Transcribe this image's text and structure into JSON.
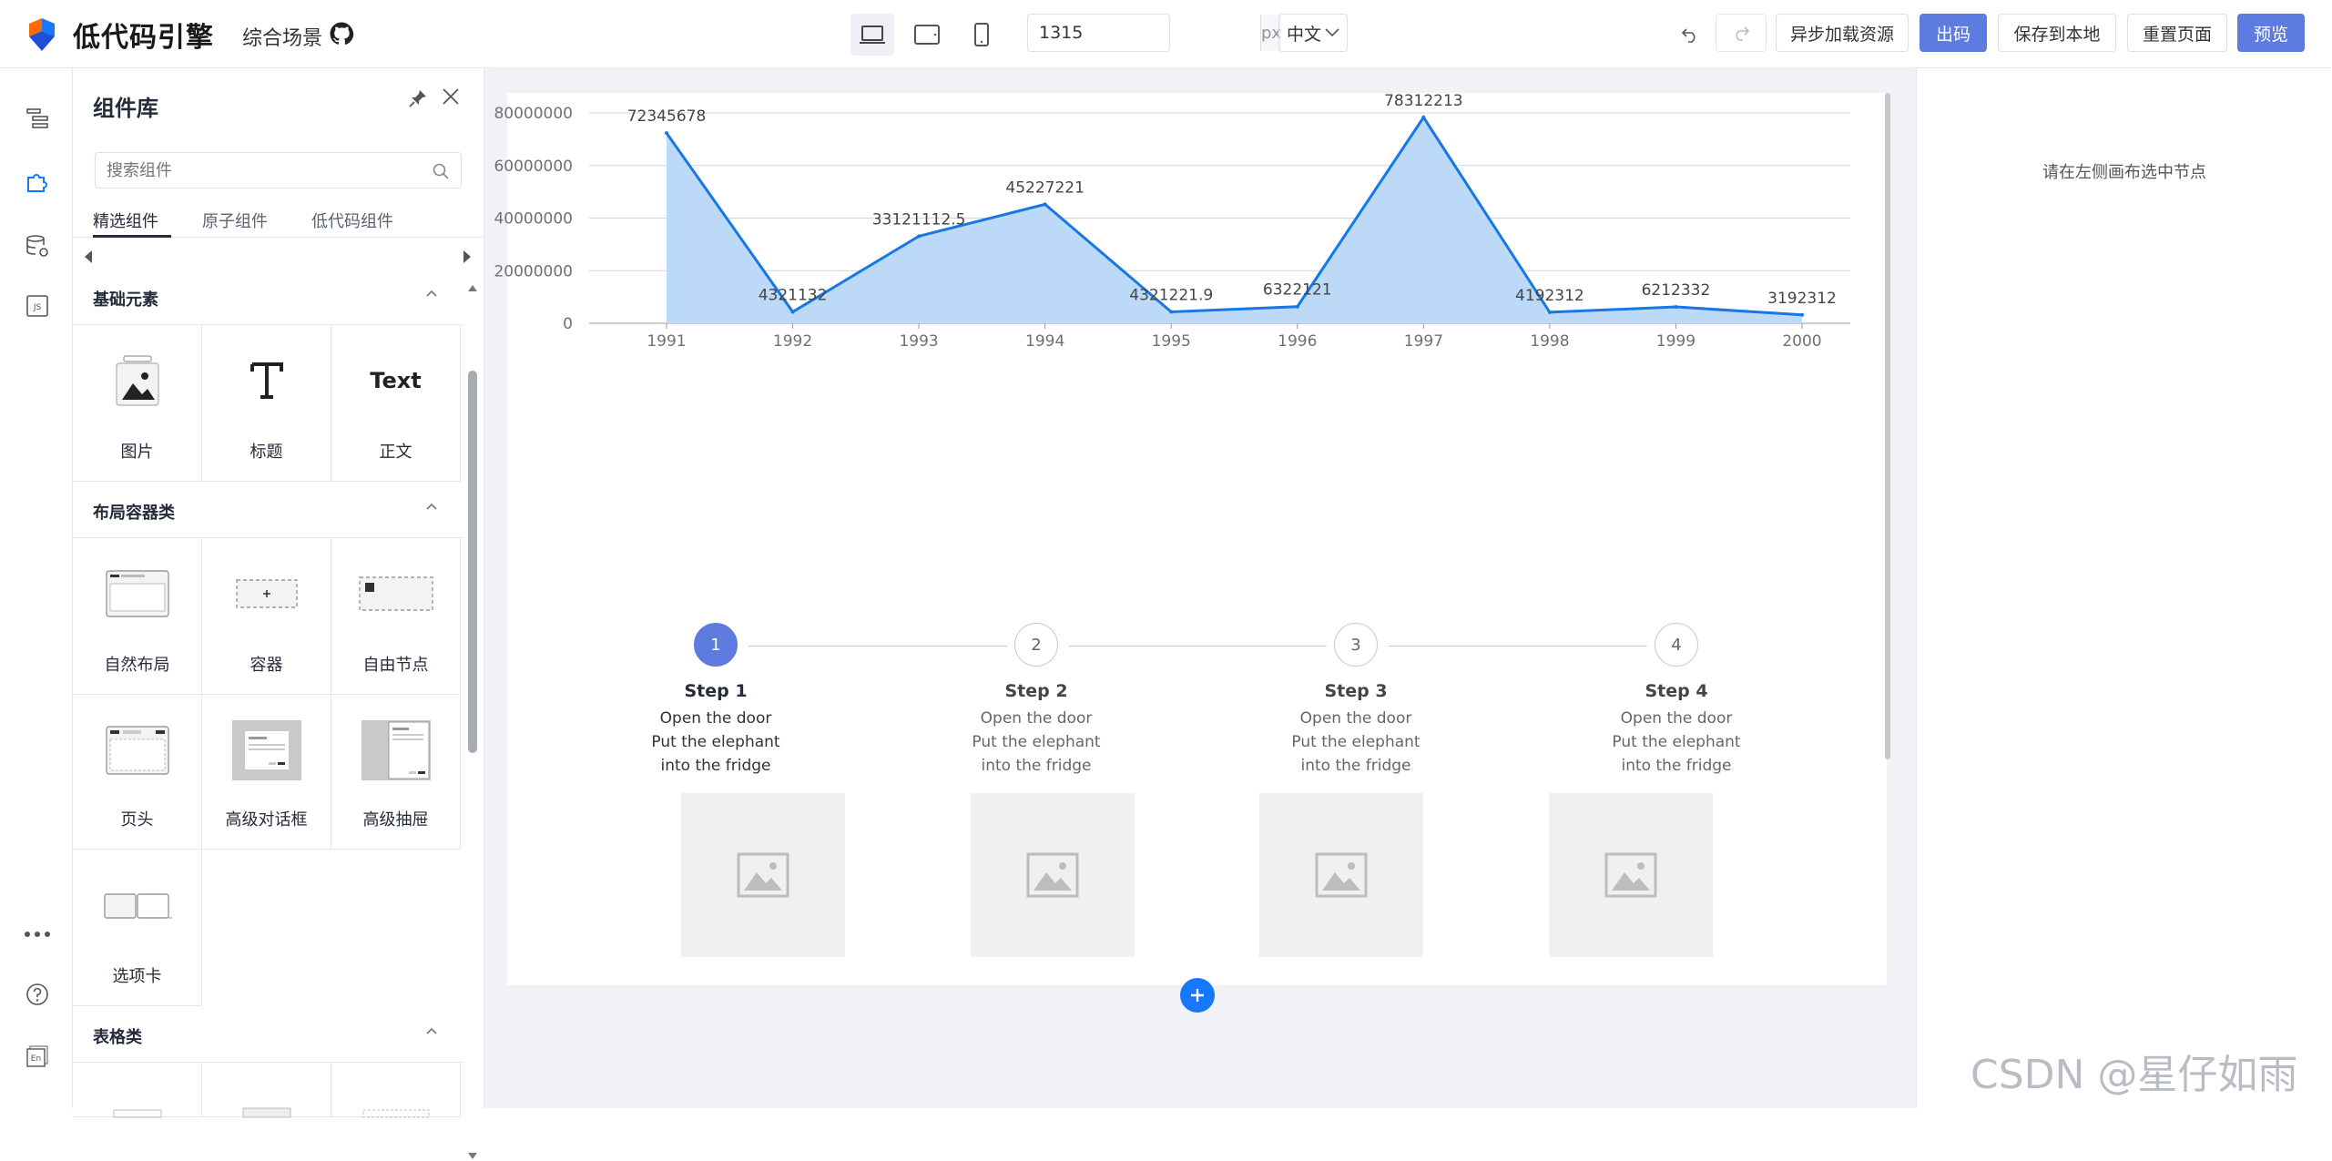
{
  "app": {
    "title": "低代码引擎",
    "scene": "综合场景"
  },
  "toolbar": {
    "width_value": "1315",
    "width_unit": "px",
    "language": "中文",
    "async_load": "异步加载资源",
    "export_code": "出码",
    "save_local": "保存到本地",
    "reset_page": "重置页面",
    "preview": "预览"
  },
  "panel": {
    "title": "组件库",
    "search_placeholder": "搜索组件",
    "tabs": [
      "精选组件",
      "原子组件",
      "低代码组件"
    ],
    "sections": [
      {
        "title": "基础元素",
        "items": [
          "图片",
          "标题",
          "正文"
        ]
      },
      {
        "title": "布局容器类",
        "items": [
          "自然布局",
          "容器",
          "自由节点",
          "页头",
          "高级对话框",
          "高级抽屉",
          "选项卡"
        ]
      },
      {
        "title": "表格类",
        "items": []
      }
    ],
    "text_icon_label": "Text"
  },
  "right_panel": {
    "hint": "请在左侧画布选中节点"
  },
  "chart_data": {
    "type": "area",
    "x": [
      "1991",
      "1992",
      "1993",
      "1994",
      "1995",
      "1996",
      "1997",
      "1998",
      "1999",
      "2000"
    ],
    "values": [
      72345678,
      4321132,
      33121112.5,
      45227221,
      4321221.9,
      6322121,
      78312213,
      4192312,
      6212332,
      3192312
    ],
    "data_labels": [
      "72345678",
      "4321132",
      "33121112.5",
      "45227221",
      "4321221.9",
      "6322121",
      "78312213",
      "4192312",
      "6212332",
      "3192312"
    ],
    "y_ticks": [
      "0",
      "20000000",
      "40000000",
      "60000000",
      "80000000"
    ],
    "ylim": [
      0,
      80000000
    ],
    "grid": true,
    "line_color": "#1677e5",
    "fill_color": "#bcd9f7"
  },
  "steps": [
    {
      "num": "1",
      "title": "Step 1",
      "desc": "Open the door Put the elephant into the fridge"
    },
    {
      "num": "2",
      "title": "Step 2",
      "desc": "Open the door Put the elephant into the fridge"
    },
    {
      "num": "3",
      "title": "Step 3",
      "desc": "Open the door Put the elephant into the fridge"
    },
    {
      "num": "4",
      "title": "Step 4",
      "desc": "Open the door Put the elephant into the fridge"
    }
  ],
  "watermark": "CSDN @星仔如雨",
  "colors": {
    "primary": "#5e7ce0",
    "accent_blue": "#1677ff",
    "workspace_bg": "#f0f2f5"
  }
}
